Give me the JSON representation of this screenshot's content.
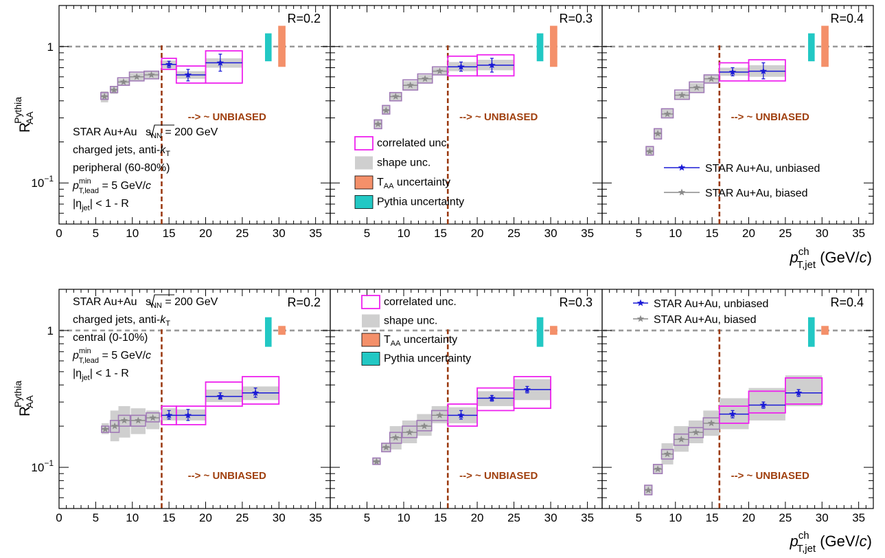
{
  "figure": {
    "y_axis_label": {
      "main": "R",
      "sup": "Pythia",
      "sub": "AA"
    },
    "x_axis_label": {
      "main": "p",
      "sup": "ch",
      "sub": "T,jet",
      "unit": "(GeV/",
      "unit_italic": "c",
      "unit_close": ")"
    },
    "unbiased_note": "--> ~ UNBIASED",
    "colors": {
      "unbiased": "#1a1ad6",
      "biased": "#8a8a8a",
      "biased_box": "#a07ab6",
      "correlated": "#ee22ee",
      "shape": "#cfcfcf",
      "taa": "#f4906a",
      "pythia": "#22c8c4",
      "cut_line": "#9b3a10",
      "unity_line": "#999999",
      "note": "#a0400f"
    },
    "peripheral_info": [
      {
        "kind": "sqrts",
        "before": "STAR Au+Au ",
        "root": "s",
        "sub": "NN",
        "after": " = 200 GeV"
      },
      {
        "kind": "italic_sub",
        "before": "charged jets, anti-",
        "it": "k",
        "sub": "T",
        "after": ""
      },
      {
        "kind": "plain",
        "text": "peripheral (60-80%)"
      },
      {
        "kind": "ptlead",
        "p": "p",
        "sup": "min",
        "sub": "T,lead",
        "after": " = 5 GeV/",
        "c": "c"
      },
      {
        "kind": "eta",
        "open": "|",
        "eta": "η",
        "sub": "jet",
        "after": "| < 1 - R"
      }
    ],
    "central_info": [
      {
        "kind": "sqrts",
        "before": "STAR Au+Au ",
        "root": "s",
        "sub": "NN",
        "after": " = 200 GeV"
      },
      {
        "kind": "italic_sub",
        "before": "charged jets, anti-",
        "it": "k",
        "sub": "T",
        "after": ""
      },
      {
        "kind": "plain",
        "text": "central (0-10%)"
      },
      {
        "kind": "ptlead",
        "p": "p",
        "sup": "min",
        "sub": "T,lead",
        "after": " = 5 GeV/",
        "c": "c"
      },
      {
        "kind": "eta",
        "open": "|",
        "eta": "η",
        "sub": "jet",
        "after": "| < 1 - R"
      }
    ],
    "uncertainty_legend": [
      {
        "kind": "correlated",
        "before": "correlated unc.",
        "sub": "",
        "after": ""
      },
      {
        "kind": "shape",
        "before": "shape unc.",
        "sub": "",
        "after": ""
      },
      {
        "kind": "taa",
        "before": "T",
        "sub": "AA",
        "after": " uncertainty"
      },
      {
        "kind": "pythia",
        "before": "Pythia uncertainty",
        "sub": "",
        "after": ""
      }
    ],
    "series_legend": [
      {
        "kind": "unbiased",
        "label": "STAR Au+Au, unbiased"
      },
      {
        "kind": "biased",
        "label": "STAR Au+Au, biased"
      }
    ]
  },
  "chart_data": [
    {
      "type": "scatter",
      "row": "peripheral",
      "label": "R=0.2",
      "xlim": [
        0,
        37
      ],
      "ylim": [
        0.05,
        2
      ],
      "yscale": "log",
      "xticks": [
        0,
        5,
        10,
        15,
        20,
        25,
        30,
        35
      ],
      "yticks": [
        {
          "v": 1,
          "l": "1"
        },
        {
          "v": 0.1,
          "l": "10",
          "sup": "−1"
        }
      ],
      "cut": 14,
      "pythia_unc": [
        0.78,
        1.25
      ],
      "taa_unc": [
        0.71,
        1.42
      ],
      "biased": [
        {
          "x": 6.2,
          "w": 1.0,
          "y": 0.43,
          "sh": [
            0.39,
            0.47
          ],
          "co": [
            0.41,
            0.46
          ]
        },
        {
          "x": 7.5,
          "w": 1.0,
          "y": 0.48,
          "sh": [
            0.45,
            0.51
          ],
          "co": [
            0.46,
            0.51
          ]
        },
        {
          "x": 8.8,
          "w": 1.6,
          "y": 0.55,
          "sh": [
            0.52,
            0.58
          ],
          "co": [
            0.52,
            0.59
          ]
        },
        {
          "x": 10.6,
          "w": 2.0,
          "y": 0.6,
          "sh": [
            0.56,
            0.64
          ],
          "co": [
            0.56,
            0.65
          ]
        },
        {
          "x": 12.6,
          "w": 2.0,
          "y": 0.62,
          "sh": [
            0.58,
            0.66
          ],
          "co": [
            0.58,
            0.66
          ]
        }
      ],
      "unbiased": [
        {
          "x0": 14,
          "x1": 16,
          "xc": 15,
          "y": 0.74,
          "e": [
            0.7,
            0.78
          ],
          "sh": [
            0.69,
            0.79
          ],
          "co": [
            0.68,
            0.82
          ]
        },
        {
          "x0": 16,
          "x1": 20,
          "xc": 17.6,
          "y": 0.62,
          "e": [
            0.56,
            0.68
          ],
          "sh": [
            0.58,
            0.66
          ],
          "co": [
            0.54,
            0.72
          ]
        },
        {
          "x0": 20,
          "x1": 25,
          "xc": 22,
          "y": 0.76,
          "e": [
            0.66,
            0.88
          ],
          "sh": [
            0.7,
            0.82
          ],
          "co": [
            0.54,
            0.93
          ]
        }
      ]
    },
    {
      "type": "scatter",
      "row": "peripheral",
      "label": "R=0.3",
      "xlim": [
        0,
        37
      ],
      "ylim": [
        0.05,
        2
      ],
      "yscale": "log",
      "xticks": [
        5,
        10,
        15,
        20,
        25,
        30,
        35
      ],
      "yticks": [
        {
          "v": 1,
          "l": ""
        },
        {
          "v": 0.1,
          "l": ""
        }
      ],
      "cut": 16,
      "pythia_unc": [
        0.78,
        1.25
      ],
      "taa_unc": [
        0.71,
        1.42
      ],
      "biased": [
        {
          "x": 6.5,
          "w": 1.0,
          "y": 0.27,
          "sh": [
            0.25,
            0.29
          ],
          "co": [
            0.25,
            0.29
          ]
        },
        {
          "x": 7.6,
          "w": 1.0,
          "y": 0.34,
          "sh": [
            0.32,
            0.37
          ],
          "co": [
            0.32,
            0.37
          ]
        },
        {
          "x": 8.9,
          "w": 1.6,
          "y": 0.43,
          "sh": [
            0.4,
            0.46
          ],
          "co": [
            0.4,
            0.46
          ]
        },
        {
          "x": 10.9,
          "w": 2.0,
          "y": 0.52,
          "sh": [
            0.48,
            0.56
          ],
          "co": [
            0.48,
            0.57
          ]
        },
        {
          "x": 12.9,
          "w": 2.0,
          "y": 0.58,
          "sh": [
            0.54,
            0.62
          ],
          "co": [
            0.54,
            0.63
          ]
        },
        {
          "x": 14.9,
          "w": 2.0,
          "y": 0.66,
          "sh": [
            0.62,
            0.7
          ],
          "co": [
            0.62,
            0.71
          ]
        }
      ],
      "unbiased": [
        {
          "x0": 16,
          "x1": 20,
          "xc": 17.8,
          "y": 0.71,
          "e": [
            0.66,
            0.77
          ],
          "sh": [
            0.66,
            0.77
          ],
          "co": [
            0.61,
            0.85
          ]
        },
        {
          "x0": 20,
          "x1": 25,
          "xc": 22,
          "y": 0.73,
          "e": [
            0.65,
            0.82
          ],
          "sh": [
            0.67,
            0.8
          ],
          "co": [
            0.61,
            0.87
          ]
        }
      ]
    },
    {
      "type": "scatter",
      "row": "peripheral",
      "label": "R=0.4",
      "xlim": [
        0,
        37
      ],
      "ylim": [
        0.05,
        2
      ],
      "yscale": "log",
      "xticks": [
        5,
        10,
        15,
        20,
        25,
        30,
        35
      ],
      "yticks": [
        {
          "v": 1,
          "l": ""
        },
        {
          "v": 0.1,
          "l": ""
        }
      ],
      "cut": 16,
      "pythia_unc": [
        0.78,
        1.25
      ],
      "taa_unc": [
        0.71,
        1.42
      ],
      "biased": [
        {
          "x": 6.5,
          "w": 1.0,
          "y": 0.17,
          "sh": [
            0.16,
            0.185
          ],
          "co": [
            0.16,
            0.185
          ]
        },
        {
          "x": 7.6,
          "w": 1.0,
          "y": 0.23,
          "sh": [
            0.21,
            0.25
          ],
          "co": [
            0.21,
            0.25
          ]
        },
        {
          "x": 8.9,
          "w": 1.6,
          "y": 0.32,
          "sh": [
            0.3,
            0.35
          ],
          "co": [
            0.3,
            0.35
          ]
        },
        {
          "x": 10.9,
          "w": 2.0,
          "y": 0.44,
          "sh": [
            0.41,
            0.47
          ],
          "co": [
            0.41,
            0.48
          ]
        },
        {
          "x": 12.9,
          "w": 2.0,
          "y": 0.5,
          "sh": [
            0.46,
            0.54
          ],
          "co": [
            0.46,
            0.55
          ]
        },
        {
          "x": 14.9,
          "w": 2.0,
          "y": 0.58,
          "sh": [
            0.54,
            0.62
          ],
          "co": [
            0.54,
            0.62
          ]
        }
      ],
      "unbiased": [
        {
          "x0": 16,
          "x1": 20,
          "xc": 17.8,
          "y": 0.65,
          "e": [
            0.61,
            0.7
          ],
          "sh": [
            0.61,
            0.7
          ],
          "co": [
            0.56,
            0.76
          ]
        },
        {
          "x0": 20,
          "x1": 25,
          "xc": 22,
          "y": 0.66,
          "e": [
            0.58,
            0.76
          ],
          "sh": [
            0.6,
            0.73
          ],
          "co": [
            0.56,
            0.8
          ]
        }
      ]
    },
    {
      "type": "scatter",
      "row": "central",
      "label": "R=0.2",
      "xlim": [
        0,
        37
      ],
      "ylim": [
        0.05,
        2
      ],
      "yscale": "log",
      "xticks": [
        0,
        5,
        10,
        15,
        20,
        25,
        30,
        35
      ],
      "yticks": [
        {
          "v": 1,
          "l": "1"
        },
        {
          "v": 0.1,
          "l": "10",
          "sup": "−1"
        }
      ],
      "cut": 14,
      "pythia_unc": [
        0.76,
        1.25
      ],
      "taa_unc": [
        0.93,
        1.08
      ],
      "biased": [
        {
          "x": 6.3,
          "w": 1.0,
          "y": 0.19,
          "sh": [
            0.175,
            0.21
          ],
          "co": [
            0.18,
            0.2
          ]
        },
        {
          "x": 7.6,
          "w": 1.2,
          "y": 0.2,
          "sh": [
            0.155,
            0.26
          ],
          "co": [
            0.18,
            0.22
          ]
        },
        {
          "x": 8.9,
          "w": 1.6,
          "y": 0.22,
          "sh": [
            0.165,
            0.28
          ],
          "co": [
            0.2,
            0.24
          ]
        },
        {
          "x": 10.8,
          "w": 2.0,
          "y": 0.22,
          "sh": [
            0.175,
            0.27
          ],
          "co": [
            0.2,
            0.24
          ]
        },
        {
          "x": 12.8,
          "w": 1.8,
          "y": 0.23,
          "sh": [
            0.19,
            0.26
          ],
          "co": [
            0.215,
            0.25
          ]
        }
      ],
      "unbiased": [
        {
          "x0": 14,
          "x1": 16,
          "xc": 15,
          "y": 0.24,
          "e": [
            0.225,
            0.26
          ],
          "sh": [
            0.22,
            0.27
          ],
          "co": [
            0.205,
            0.28
          ]
        },
        {
          "x0": 16,
          "x1": 20,
          "xc": 17.6,
          "y": 0.24,
          "e": [
            0.22,
            0.265
          ],
          "sh": [
            0.22,
            0.265
          ],
          "co": [
            0.205,
            0.28
          ]
        },
        {
          "x0": 20,
          "x1": 25,
          "xc": 22,
          "y": 0.33,
          "e": [
            0.315,
            0.35
          ],
          "sh": [
            0.3,
            0.37
          ],
          "co": [
            0.28,
            0.42
          ]
        },
        {
          "x0": 25,
          "x1": 30,
          "xc": 26.8,
          "y": 0.35,
          "e": [
            0.325,
            0.38
          ],
          "sh": [
            0.31,
            0.39
          ],
          "co": [
            0.29,
            0.46
          ]
        }
      ]
    },
    {
      "type": "scatter",
      "row": "central",
      "label": "R=0.3",
      "xlim": [
        0,
        37
      ],
      "ylim": [
        0.05,
        2
      ],
      "yscale": "log",
      "xticks": [
        5,
        10,
        15,
        20,
        25,
        30,
        35
      ],
      "yticks": [
        {
          "v": 1,
          "l": ""
        },
        {
          "v": 0.1,
          "l": ""
        }
      ],
      "cut": 16,
      "pythia_unc": [
        0.76,
        1.25
      ],
      "taa_unc": [
        0.93,
        1.08
      ],
      "biased": [
        {
          "x": 6.3,
          "w": 1.0,
          "y": 0.11,
          "sh": [
            0.105,
            0.117
          ],
          "co": [
            0.105,
            0.117
          ]
        },
        {
          "x": 7.6,
          "w": 1.2,
          "y": 0.14,
          "sh": [
            0.13,
            0.15
          ],
          "co": [
            0.13,
            0.15
          ]
        },
        {
          "x": 8.9,
          "w": 1.6,
          "y": 0.165,
          "sh": [
            0.135,
            0.2
          ],
          "co": [
            0.15,
            0.18
          ]
        },
        {
          "x": 10.8,
          "w": 2.0,
          "y": 0.18,
          "sh": [
            0.15,
            0.22
          ],
          "co": [
            0.165,
            0.2
          ]
        },
        {
          "x": 12.8,
          "w": 2.0,
          "y": 0.2,
          "sh": [
            0.17,
            0.245
          ],
          "co": [
            0.185,
            0.22
          ]
        },
        {
          "x": 14.9,
          "w": 2.2,
          "y": 0.24,
          "sh": [
            0.21,
            0.28
          ],
          "co": [
            0.22,
            0.26
          ]
        }
      ],
      "unbiased": [
        {
          "x0": 16,
          "x1": 20,
          "xc": 17.8,
          "y": 0.24,
          "e": [
            0.225,
            0.26
          ],
          "sh": [
            0.21,
            0.275
          ],
          "co": [
            0.2,
            0.29
          ]
        },
        {
          "x0": 20,
          "x1": 25,
          "xc": 22,
          "y": 0.32,
          "e": [
            0.305,
            0.335
          ],
          "sh": [
            0.28,
            0.36
          ],
          "co": [
            0.26,
            0.38
          ]
        },
        {
          "x0": 25,
          "x1": 30,
          "xc": 26.8,
          "y": 0.37,
          "e": [
            0.35,
            0.39
          ],
          "sh": [
            0.31,
            0.44
          ],
          "co": [
            0.27,
            0.46
          ]
        }
      ]
    },
    {
      "type": "scatter",
      "row": "central",
      "label": "R=0.4",
      "xlim": [
        0,
        37
      ],
      "ylim": [
        0.05,
        2
      ],
      "yscale": "log",
      "xticks": [
        5,
        10,
        15,
        20,
        25,
        30,
        35
      ],
      "yticks": [
        {
          "v": 1,
          "l": ""
        },
        {
          "v": 0.1,
          "l": ""
        }
      ],
      "cut": 16,
      "pythia_unc": [
        0.76,
        1.25
      ],
      "taa_unc": [
        0.93,
        1.08
      ],
      "biased": [
        {
          "x": 6.3,
          "w": 1.0,
          "y": 0.068,
          "sh": [
            0.063,
            0.074
          ],
          "co": [
            0.063,
            0.074
          ]
        },
        {
          "x": 7.6,
          "w": 1.2,
          "y": 0.097,
          "sh": [
            0.09,
            0.105
          ],
          "co": [
            0.09,
            0.105
          ]
        },
        {
          "x": 8.9,
          "w": 1.6,
          "y": 0.125,
          "sh": [
            0.105,
            0.15
          ],
          "co": [
            0.115,
            0.135
          ]
        },
        {
          "x": 10.8,
          "w": 2.0,
          "y": 0.16,
          "sh": [
            0.13,
            0.2
          ],
          "co": [
            0.145,
            0.175
          ]
        },
        {
          "x": 12.8,
          "w": 2.0,
          "y": 0.18,
          "sh": [
            0.15,
            0.22
          ],
          "co": [
            0.165,
            0.195
          ]
        },
        {
          "x": 14.9,
          "w": 2.2,
          "y": 0.21,
          "sh": [
            0.17,
            0.26
          ],
          "co": [
            0.19,
            0.23
          ]
        }
      ],
      "unbiased": [
        {
          "x0": 16,
          "x1": 20,
          "xc": 17.8,
          "y": 0.245,
          "e": [
            0.23,
            0.26
          ],
          "sh": [
            0.19,
            0.32
          ],
          "co": [
            0.21,
            0.28
          ]
        },
        {
          "x0": 20,
          "x1": 25,
          "xc": 22,
          "y": 0.285,
          "e": [
            0.27,
            0.3
          ],
          "sh": [
            0.22,
            0.38
          ],
          "co": [
            0.25,
            0.36
          ]
        },
        {
          "x0": 25,
          "x1": 30,
          "xc": 26.8,
          "y": 0.35,
          "e": [
            0.33,
            0.37
          ],
          "sh": [
            0.28,
            0.47
          ],
          "co": [
            0.29,
            0.45
          ]
        }
      ]
    }
  ]
}
